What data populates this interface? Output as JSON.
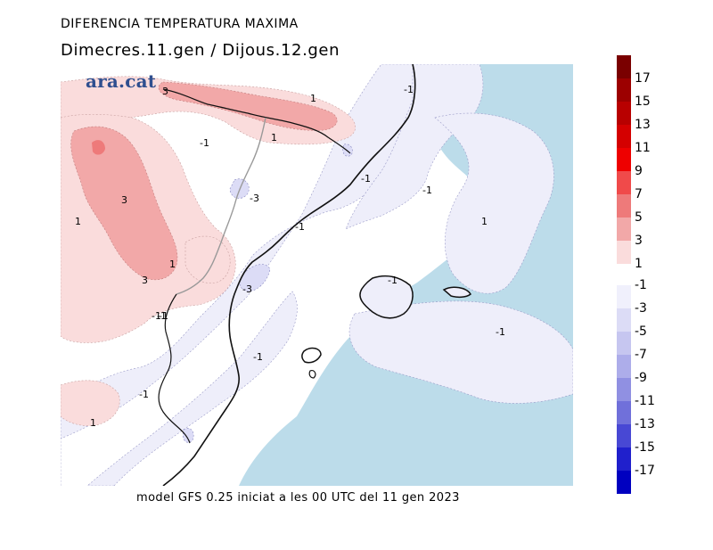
{
  "header": {
    "title": "DIFERENCIA TEMPERATURA MAXIMA",
    "subtitle": "Dimecres.11.gen / Dijous.12.gen"
  },
  "footer": {
    "text": "model GFS 0.25 iniciat a les 00 UTC del 11 gen 2023"
  },
  "logo": {
    "text": "ara.cat"
  },
  "map": {
    "contour_labels": [
      "3",
      "1",
      "-1",
      "1",
      "-1",
      "-1",
      "-1",
      "-3",
      "3",
      "1",
      "-1",
      "1",
      "1",
      "3",
      "-1",
      "-3",
      "-1",
      "-1",
      "-1",
      "-1",
      "1",
      "-1",
      "-1"
    ]
  },
  "legend": {
    "warm_labels": [
      "17",
      "15",
      "13",
      "11",
      "9",
      "7",
      "5",
      "3",
      "1"
    ],
    "cold_labels": [
      "-1",
      "-3",
      "-5",
      "-7",
      "-9",
      "-11",
      "-13",
      "-15",
      "-17"
    ],
    "warm_colors": [
      "#7a0000",
      "#9c0000",
      "#b80000",
      "#d40000",
      "#ee0000",
      "#f04a4a",
      "#ee7a7a",
      "#f2a8a8",
      "#fadcdc"
    ],
    "cold_colors": [
      "#f0f0fc",
      "#dcdcf6",
      "#c6c6f0",
      "#adadea",
      "#9090e2",
      "#7070da",
      "#4848d4",
      "#2020cc",
      "#0000c0"
    ],
    "sea_color": "#bcdcea"
  }
}
